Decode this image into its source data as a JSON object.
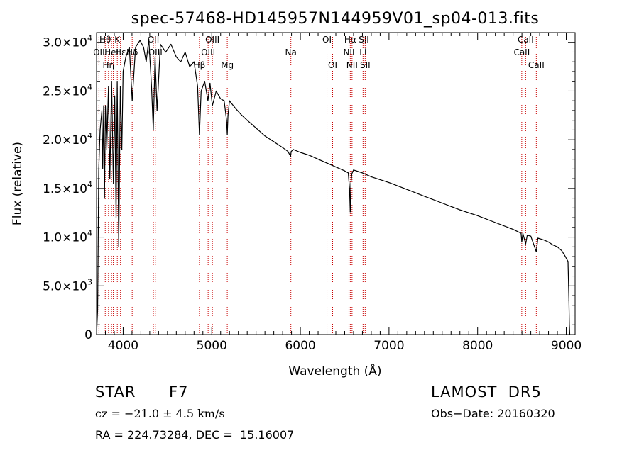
{
  "chart_data": {
    "type": "line",
    "title": "spec-57468-HD145957N144959V01_sp04-013.fits",
    "xlabel": "Wavelength (Å)",
    "ylabel": "Flux (relative)",
    "xlim": [
      3700,
      9100
    ],
    "ylim": [
      0,
      31000
    ],
    "xticks": [
      {
        "value": 4000,
        "label": "4000"
      },
      {
        "value": 5000,
        "label": "5000"
      },
      {
        "value": 6000,
        "label": "6000"
      },
      {
        "value": 7000,
        "label": "7000"
      },
      {
        "value": 8000,
        "label": "8000"
      },
      {
        "value": 9000,
        "label": "9000"
      }
    ],
    "yticks": [
      {
        "value": 0,
        "mant": "0",
        "exp": ""
      },
      {
        "value": 5000,
        "mant": "5.0×10",
        "exp": "3"
      },
      {
        "value": 10000,
        "mant": "1.0×10",
        "exp": "4"
      },
      {
        "value": 15000,
        "mant": "1.5×10",
        "exp": "4"
      },
      {
        "value": 20000,
        "mant": "2.0×10",
        "exp": "4"
      },
      {
        "value": 25000,
        "mant": "2.5×10",
        "exp": "4"
      },
      {
        "value": 30000,
        "mant": "3.0×10",
        "exp": "4"
      }
    ],
    "series": [
      {
        "color": "#000000",
        "x": [
          3700,
          3712,
          3725,
          3740,
          3760,
          3770,
          3780,
          3790,
          3800,
          3815,
          3835,
          3850,
          3870,
          3890,
          3905,
          3920,
          3933,
          3950,
          3968,
          3985,
          4000,
          4030,
          4070,
          4102,
          4140,
          4190,
          4230,
          4260,
          4290,
          4320,
          4340,
          4360,
          4383,
          4420,
          4480,
          4540,
          4600,
          4650,
          4700,
          4750,
          4800,
          4840,
          4861,
          4880,
          4920,
          4957,
          4980,
          5007,
          5050,
          5100,
          5140,
          5167,
          5175,
          5183,
          5200,
          5270,
          5330,
          5400,
          5500,
          5600,
          5700,
          5800,
          5860,
          5890,
          5896,
          5920,
          6000,
          6100,
          6200,
          6300,
          6400,
          6500,
          6540,
          6555,
          6563,
          6570,
          6580,
          6600,
          6700,
          6800,
          7000,
          7200,
          7400,
          7600,
          7800,
          8000,
          8200,
          8400,
          8490,
          8498,
          8510,
          8542,
          8560,
          8600,
          8662,
          8680,
          8750,
          8800,
          8850,
          8900,
          8950,
          8990,
          9020,
          9030,
          9035,
          9040
        ],
        "y": [
          0,
          2500,
          17000,
          21000,
          23000,
          17000,
          23500,
          14000,
          23500,
          19000,
          25500,
          16000,
          26000,
          15500,
          24500,
          12000,
          26000,
          9000,
          25500,
          19000,
          27000,
          28500,
          29500,
          24000,
          29500,
          30200,
          29500,
          28000,
          30300,
          25500,
          21000,
          28500,
          23000,
          29800,
          29000,
          29800,
          28500,
          28000,
          29000,
          27500,
          28000,
          25500,
          20500,
          25000,
          26000,
          24000,
          25800,
          23500,
          25000,
          24200,
          24000,
          22000,
          20500,
          22500,
          24000,
          23200,
          22600,
          22000,
          21200,
          20400,
          19800,
          19200,
          18800,
          18300,
          18800,
          19000,
          18700,
          18400,
          18000,
          17600,
          17200,
          16800,
          16600,
          15000,
          12600,
          15500,
          16500,
          16900,
          16600,
          16200,
          15600,
          14900,
          14200,
          13500,
          12800,
          12200,
          11500,
          10800,
          10400,
          9500,
          10400,
          9300,
          10200,
          10100,
          8500,
          9900,
          9700,
          9500,
          9200,
          9000,
          8600,
          8000,
          7500,
          3500,
          1000,
          0
        ]
      }
    ],
    "line_markers": [
      {
        "x": 3727,
        "label": "OII",
        "row": 1
      },
      {
        "x": 3798,
        "label": "Hθ",
        "row": 0
      },
      {
        "x": 3835,
        "label": "Hη",
        "row": 2
      },
      {
        "x": 3869,
        "label": "HeI",
        "row": 1
      },
      {
        "x": 3889,
        "label": "",
        "row": 0
      },
      {
        "x": 3934,
        "label": "K",
        "row": 0
      },
      {
        "x": 3970,
        "label": "Hε",
        "row": 1
      },
      {
        "x": 4102,
        "label": "Hδ",
        "row": 1
      },
      {
        "x": 4341,
        "label": "OII",
        "row": 0
      },
      {
        "x": 4363,
        "label": "OIII",
        "row": 1
      },
      {
        "x": 4861,
        "label": "Hβ",
        "row": 2
      },
      {
        "x": 4959,
        "label": "OIII",
        "row": 1
      },
      {
        "x": 5007,
        "label": "OIII",
        "row": 0
      },
      {
        "x": 5175,
        "label": "Mg",
        "row": 2
      },
      {
        "x": 5893,
        "label": "Na",
        "row": 1
      },
      {
        "x": 6300,
        "label": "OI",
        "row": 0
      },
      {
        "x": 6364,
        "label": "OI",
        "row": 2
      },
      {
        "x": 6548,
        "label": "NII",
        "row": 1
      },
      {
        "x": 6563,
        "label": "Hα",
        "row": 0
      },
      {
        "x": 6583,
        "label": "NII",
        "row": 2
      },
      {
        "x": 6707,
        "label": "Li",
        "row": 1
      },
      {
        "x": 6716,
        "label": "SII",
        "row": 0
      },
      {
        "x": 6731,
        "label": "SII",
        "row": 2
      },
      {
        "x": 8498,
        "label": "CaII",
        "row": 1
      },
      {
        "x": 8542,
        "label": "CaII",
        "row": 0
      },
      {
        "x": 8662,
        "label": "CaII",
        "row": 2
      }
    ]
  },
  "info": {
    "object_class": "STAR",
    "subclass": "F7",
    "survey": "LAMOST  DR5",
    "redshift": "cz = −21.0 ± 4.5 km/s",
    "obs_date": "Obs−Date: 20160320",
    "coords": "RA = 224.73284, DEC =  15.16007"
  },
  "colors": {
    "spectrum": "#000000",
    "line_marker": "#c80000",
    "axes": "#000000"
  }
}
